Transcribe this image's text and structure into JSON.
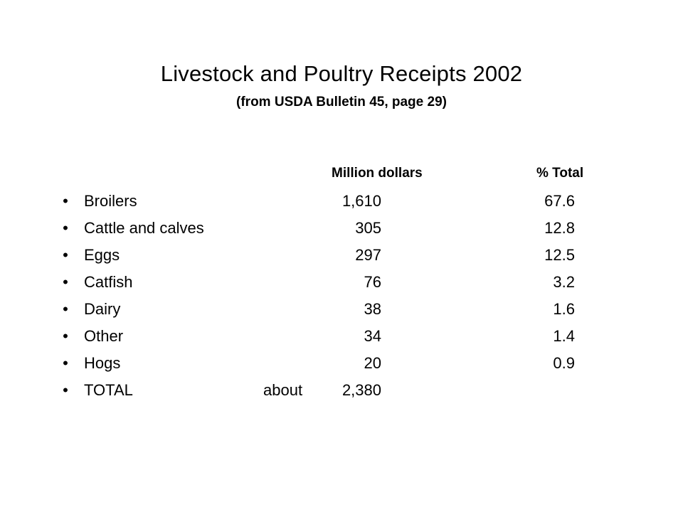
{
  "slide": {
    "title": "Livestock and Poultry Receipts 2002",
    "subtitle": "(from USDA Bulletin 45, page 29)",
    "columns": {
      "million": "Million dollars",
      "percent": "% Total"
    },
    "bullet_glyph": "•",
    "rows": [
      {
        "label": "Broilers",
        "qualifier": "",
        "million": "1,610",
        "percent": "67.6"
      },
      {
        "label": "Cattle and calves",
        "qualifier": "",
        "million": "305",
        "percent": "12.8"
      },
      {
        "label": "Eggs",
        "qualifier": "",
        "million": "297",
        "percent": "12.5"
      },
      {
        "label": "Catfish",
        "qualifier": "",
        "million": "76",
        "percent": "3.2"
      },
      {
        "label": "Dairy",
        "qualifier": "",
        "million": "38",
        "percent": "1.6"
      },
      {
        "label": "Other",
        "qualifier": "",
        "million": "34",
        "percent": "1.4"
      },
      {
        "label": "Hogs",
        "qualifier": "",
        "million": "20",
        "percent": "0.9"
      },
      {
        "label": "TOTAL",
        "qualifier": "about",
        "million": "2,380",
        "percent": ""
      }
    ]
  }
}
